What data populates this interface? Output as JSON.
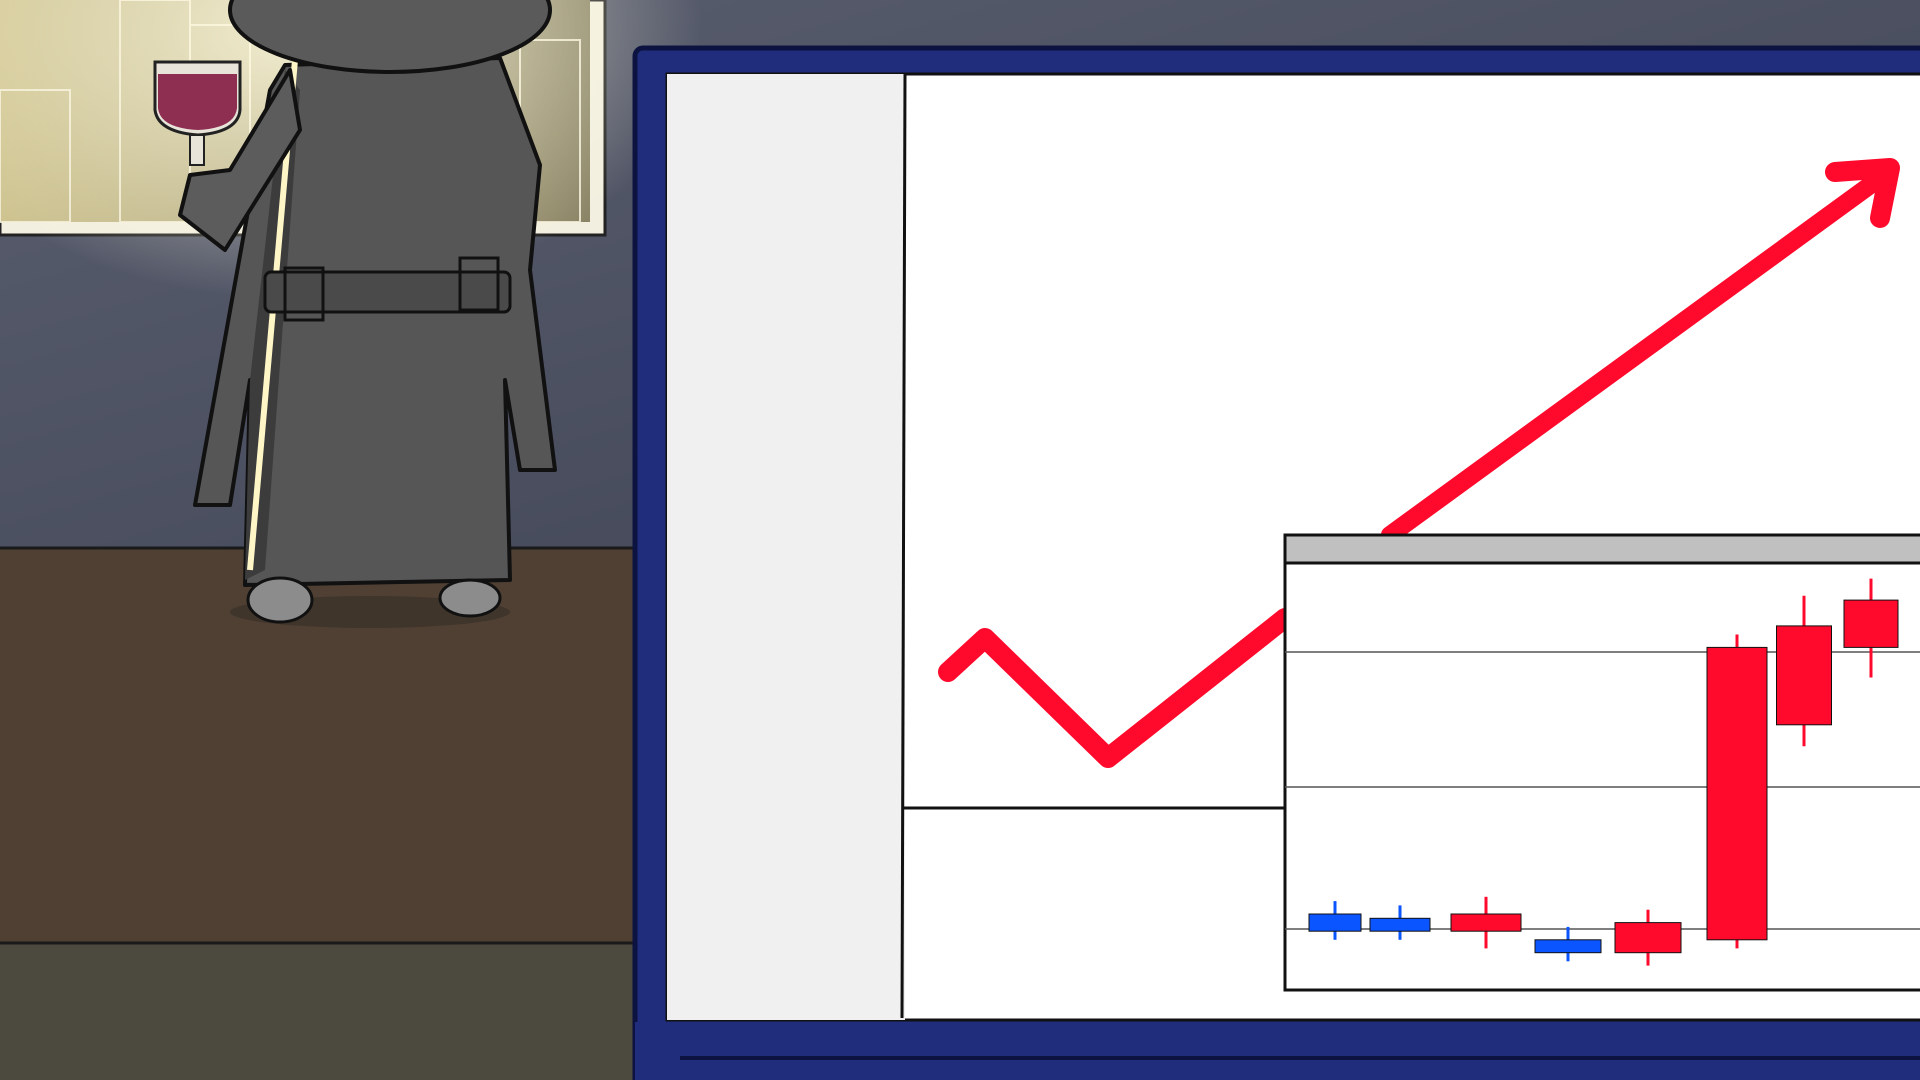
{
  "scene": {
    "description_free": true,
    "colors": {
      "wall": "#4a4f60",
      "wall_light": "#8a8f9c",
      "floor": "#4f4033",
      "floor_lower": "#4c4a3e",
      "window_glow": "#e6dcae",
      "coat": "#565656",
      "coat_dark": "#3c3c3c",
      "wine": "#8e2f52",
      "monitor_frame": "#1f2d7c",
      "screen": "#ffffff",
      "sidebar": "#f0f0f0",
      "arrow": "#ff0a2c",
      "candle_up": "#ff0a2c",
      "candle_down": "#0a55ff",
      "inset_header": "#c0c0c0"
    }
  },
  "trend_arrow": {
    "direction": "up"
  },
  "candlestick_inset": {
    "type": "candlestick",
    "candles": [
      {
        "direction": "down",
        "open": 0.2,
        "close": 0.16,
        "high": 0.23,
        "low": 0.14
      },
      {
        "direction": "down",
        "open": 0.19,
        "close": 0.16,
        "high": 0.22,
        "low": 0.14
      },
      {
        "direction": "up",
        "open": 0.16,
        "close": 0.2,
        "high": 0.24,
        "low": 0.12
      },
      {
        "direction": "down",
        "open": 0.14,
        "close": 0.11,
        "high": 0.17,
        "low": 0.09
      },
      {
        "direction": "up",
        "open": 0.11,
        "close": 0.18,
        "high": 0.21,
        "low": 0.08
      },
      {
        "direction": "up",
        "open": 0.14,
        "close": 0.82,
        "high": 0.85,
        "low": 0.12
      },
      {
        "direction": "up",
        "open": 0.64,
        "close": 0.87,
        "high": 0.94,
        "low": 0.59
      },
      {
        "direction": "up",
        "open": 0.82,
        "close": 0.93,
        "high": 0.98,
        "low": 0.75
      }
    ]
  }
}
